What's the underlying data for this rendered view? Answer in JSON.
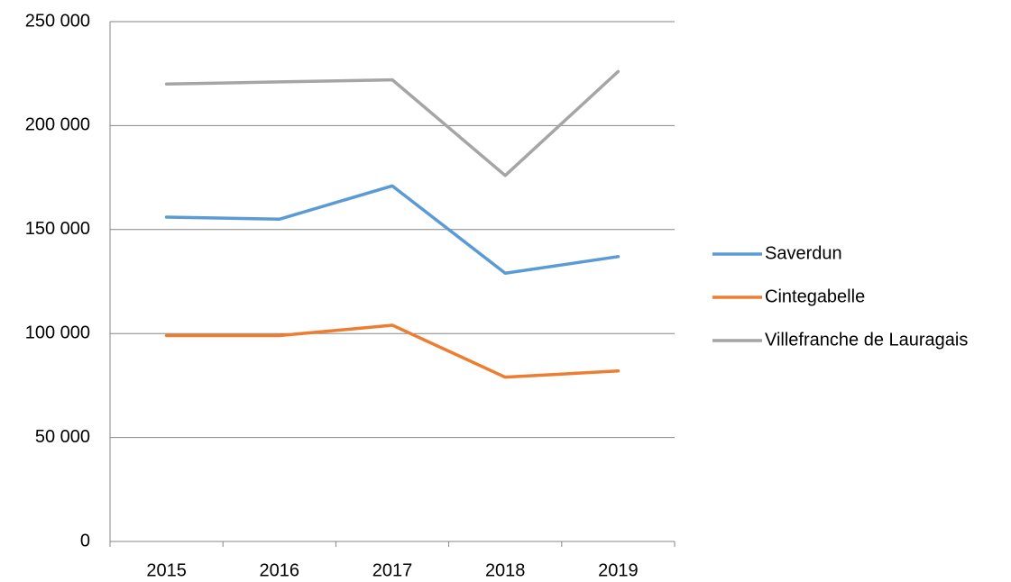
{
  "chart_data": {
    "type": "line",
    "categories": [
      "2015",
      "2016",
      "2017",
      "2018",
      "2019"
    ],
    "series": [
      {
        "name": "Saverdun",
        "color": "#5b9bd5",
        "values": [
          156000,
          155000,
          171000,
          129000,
          137000
        ]
      },
      {
        "name": "Cintegabelle",
        "color": "#ed7d31",
        "values": [
          99000,
          99000,
          104000,
          79000,
          82000
        ]
      },
      {
        "name": "Villefranche de Lauragais",
        "color": "#a5a5a5",
        "values": [
          220000,
          221000,
          222000,
          176000,
          226000
        ]
      }
    ],
    "ylim": [
      0,
      250000
    ],
    "yticks": [
      0,
      {
        "value": 50000,
        "label": "50 000"
      },
      {
        "value": 100000,
        "label": "100 000"
      },
      {
        "value": 150000,
        "label": "150 000"
      },
      {
        "value": 200000,
        "label": "200 000"
      },
      {
        "value": 250000,
        "label": "250 000"
      }
    ],
    "grid": true,
    "legend": "right"
  }
}
